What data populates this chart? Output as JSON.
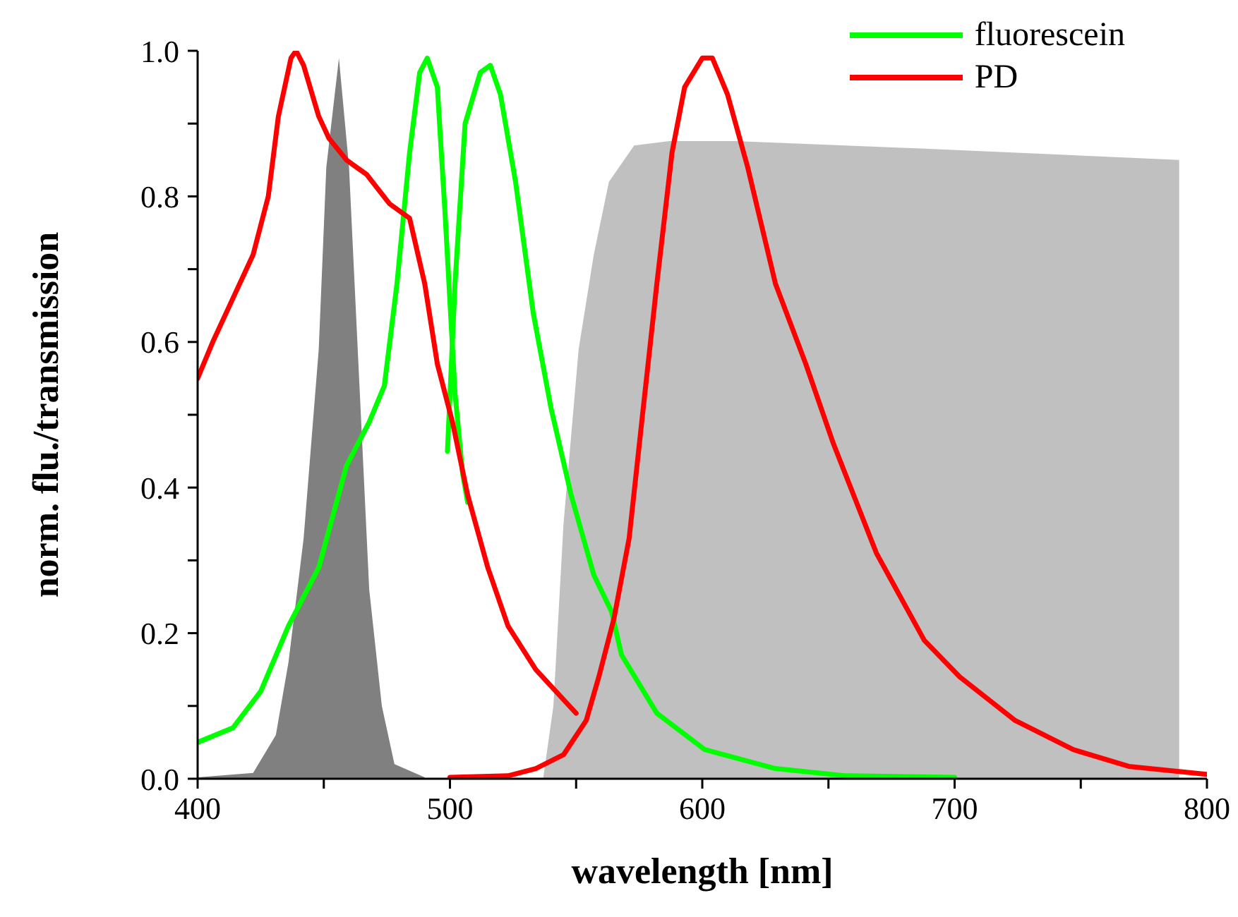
{
  "chart_data": {
    "type": "line",
    "xlabel": "wavelength [nm]",
    "ylabel": "norm. flu./transmission",
    "xlim": [
      400,
      800
    ],
    "xticks": [
      400,
      {
        "value": 450,
        "label": null
      },
      500,
      {
        "value": 550,
        "label": null
      },
      600,
      {
        "value": 650,
        "label": null
      },
      700,
      {
        "value": 750,
        "label": null
      },
      800
    ],
    "ylim": [
      0,
      1
    ],
    "yticks": [
      {
        "value": 0,
        "label": "0.0"
      },
      {
        "value": 0.1,
        "label": null
      },
      {
        "value": 0.2,
        "label": "0.2"
      },
      {
        "value": 0.3,
        "label": null
      },
      {
        "value": 0.4,
        "label": "0.4"
      },
      {
        "value": 0.5,
        "label": null
      },
      {
        "value": 0.6,
        "label": "0.6"
      },
      {
        "value": 0.7,
        "label": null
      },
      {
        "value": 0.8,
        "label": "0.8"
      },
      {
        "value": 0.9,
        "label": null
      },
      {
        "value": 1,
        "label": "1.0"
      }
    ],
    "grid": false,
    "legend": "top right",
    "series": [
      {
        "type": "area",
        "color": "#808080",
        "x": [
          400,
          422,
          431,
          436,
          442,
          448,
          451,
          456,
          460,
          464,
          468,
          473,
          478,
          490
        ],
        "values": [
          0.002,
          0.008,
          0.06,
          0.16,
          0.33,
          0.59,
          0.84,
          0.99,
          0.84,
          0.55,
          0.26,
          0.1,
          0.02,
          0.002
        ]
      },
      {
        "type": "area",
        "color": "#c0c0c0",
        "x": [
          537,
          541,
          545,
          551,
          557,
          563,
          573,
          587,
          613,
          685,
          789
        ],
        "values": [
          0.002,
          0.1,
          0.35,
          0.59,
          0.72,
          0.82,
          0.87,
          0.876,
          0.876,
          0.866,
          0.85
        ]
      },
      {
        "name": "fluorescein",
        "color": "#00ff00",
        "x": [
          499,
          502,
          506,
          512,
          516,
          520,
          526,
          533,
          540,
          548,
          557,
          564,
          568,
          582,
          601,
          629,
          657,
          700
        ],
        "values": [
          0.45,
          0.68,
          0.9,
          0.97,
          0.98,
          0.94,
          0.82,
          0.64,
          0.51,
          0.39,
          0.28,
          0.23,
          0.17,
          0.09,
          0.04,
          0.014,
          0.004,
          0.002
        ]
      },
      {
        "color": "#00ff00",
        "x": [
          400,
          414,
          425,
          436,
          448,
          459,
          468,
          474,
          479,
          484,
          488,
          491,
          495,
          498,
          502,
          505,
          507
        ],
        "values": [
          0.05,
          0.07,
          0.12,
          0.21,
          0.29,
          0.43,
          0.49,
          0.54,
          0.68,
          0.86,
          0.97,
          0.99,
          0.95,
          0.78,
          0.53,
          0.42,
          0.38
        ]
      },
      {
        "name": "PD",
        "color": "#ff0000",
        "x": [
          500,
          523,
          534,
          545,
          554,
          559,
          565,
          571,
          576,
          582,
          588,
          593,
          600,
          604,
          610,
          618,
          629,
          641,
          652,
          669,
          688,
          702,
          724,
          747,
          769,
          800
        ],
        "values": [
          0.002,
          0.004,
          0.014,
          0.033,
          0.08,
          0.14,
          0.22,
          0.33,
          0.49,
          0.68,
          0.86,
          0.95,
          0.99,
          0.99,
          0.94,
          0.84,
          0.68,
          0.57,
          0.46,
          0.31,
          0.19,
          0.14,
          0.08,
          0.04,
          0.017,
          0.006
        ]
      },
      {
        "color": "#ff0000",
        "x": [
          400,
          406,
          414,
          422,
          428,
          432,
          437,
          439,
          442,
          448,
          452,
          459,
          467,
          476,
          484,
          490,
          495,
          501,
          507,
          515,
          523,
          534,
          550
        ],
        "values": [
          0.55,
          0.6,
          0.66,
          0.72,
          0.8,
          0.91,
          0.99,
          1,
          0.98,
          0.91,
          0.88,
          0.85,
          0.83,
          0.79,
          0.77,
          0.68,
          0.57,
          0.49,
          0.39,
          0.29,
          0.21,
          0.15,
          0.09
        ]
      }
    ]
  }
}
